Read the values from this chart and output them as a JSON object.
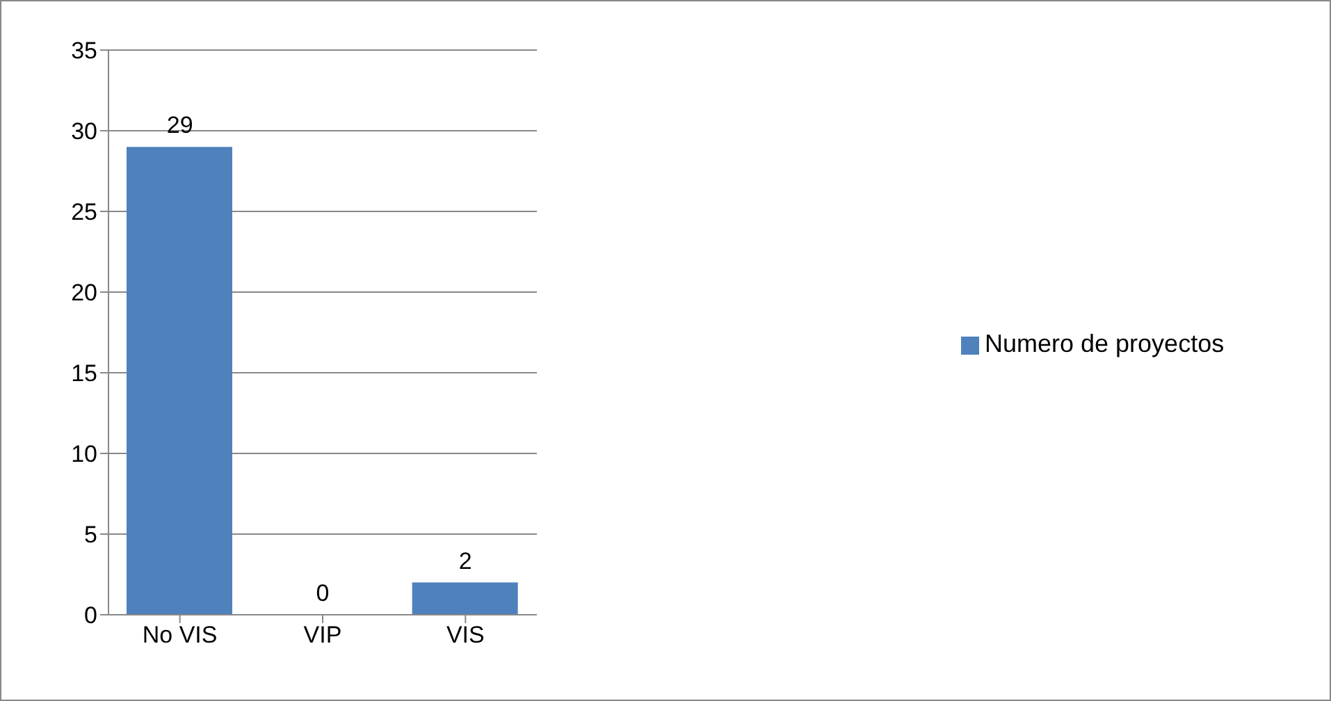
{
  "chart_data": {
    "type": "bar",
    "categories": [
      "No VIS",
      "VIP",
      "VIS"
    ],
    "series": [
      {
        "name": "Numero de proyectos",
        "color": "#4f81bd",
        "values": [
          29,
          0,
          2
        ]
      }
    ],
    "ylim": [
      0,
      35
    ],
    "yticks": [
      0,
      5,
      10,
      15,
      20,
      25,
      30,
      35
    ],
    "grid": "y",
    "legend": "right",
    "data_labels": true
  }
}
